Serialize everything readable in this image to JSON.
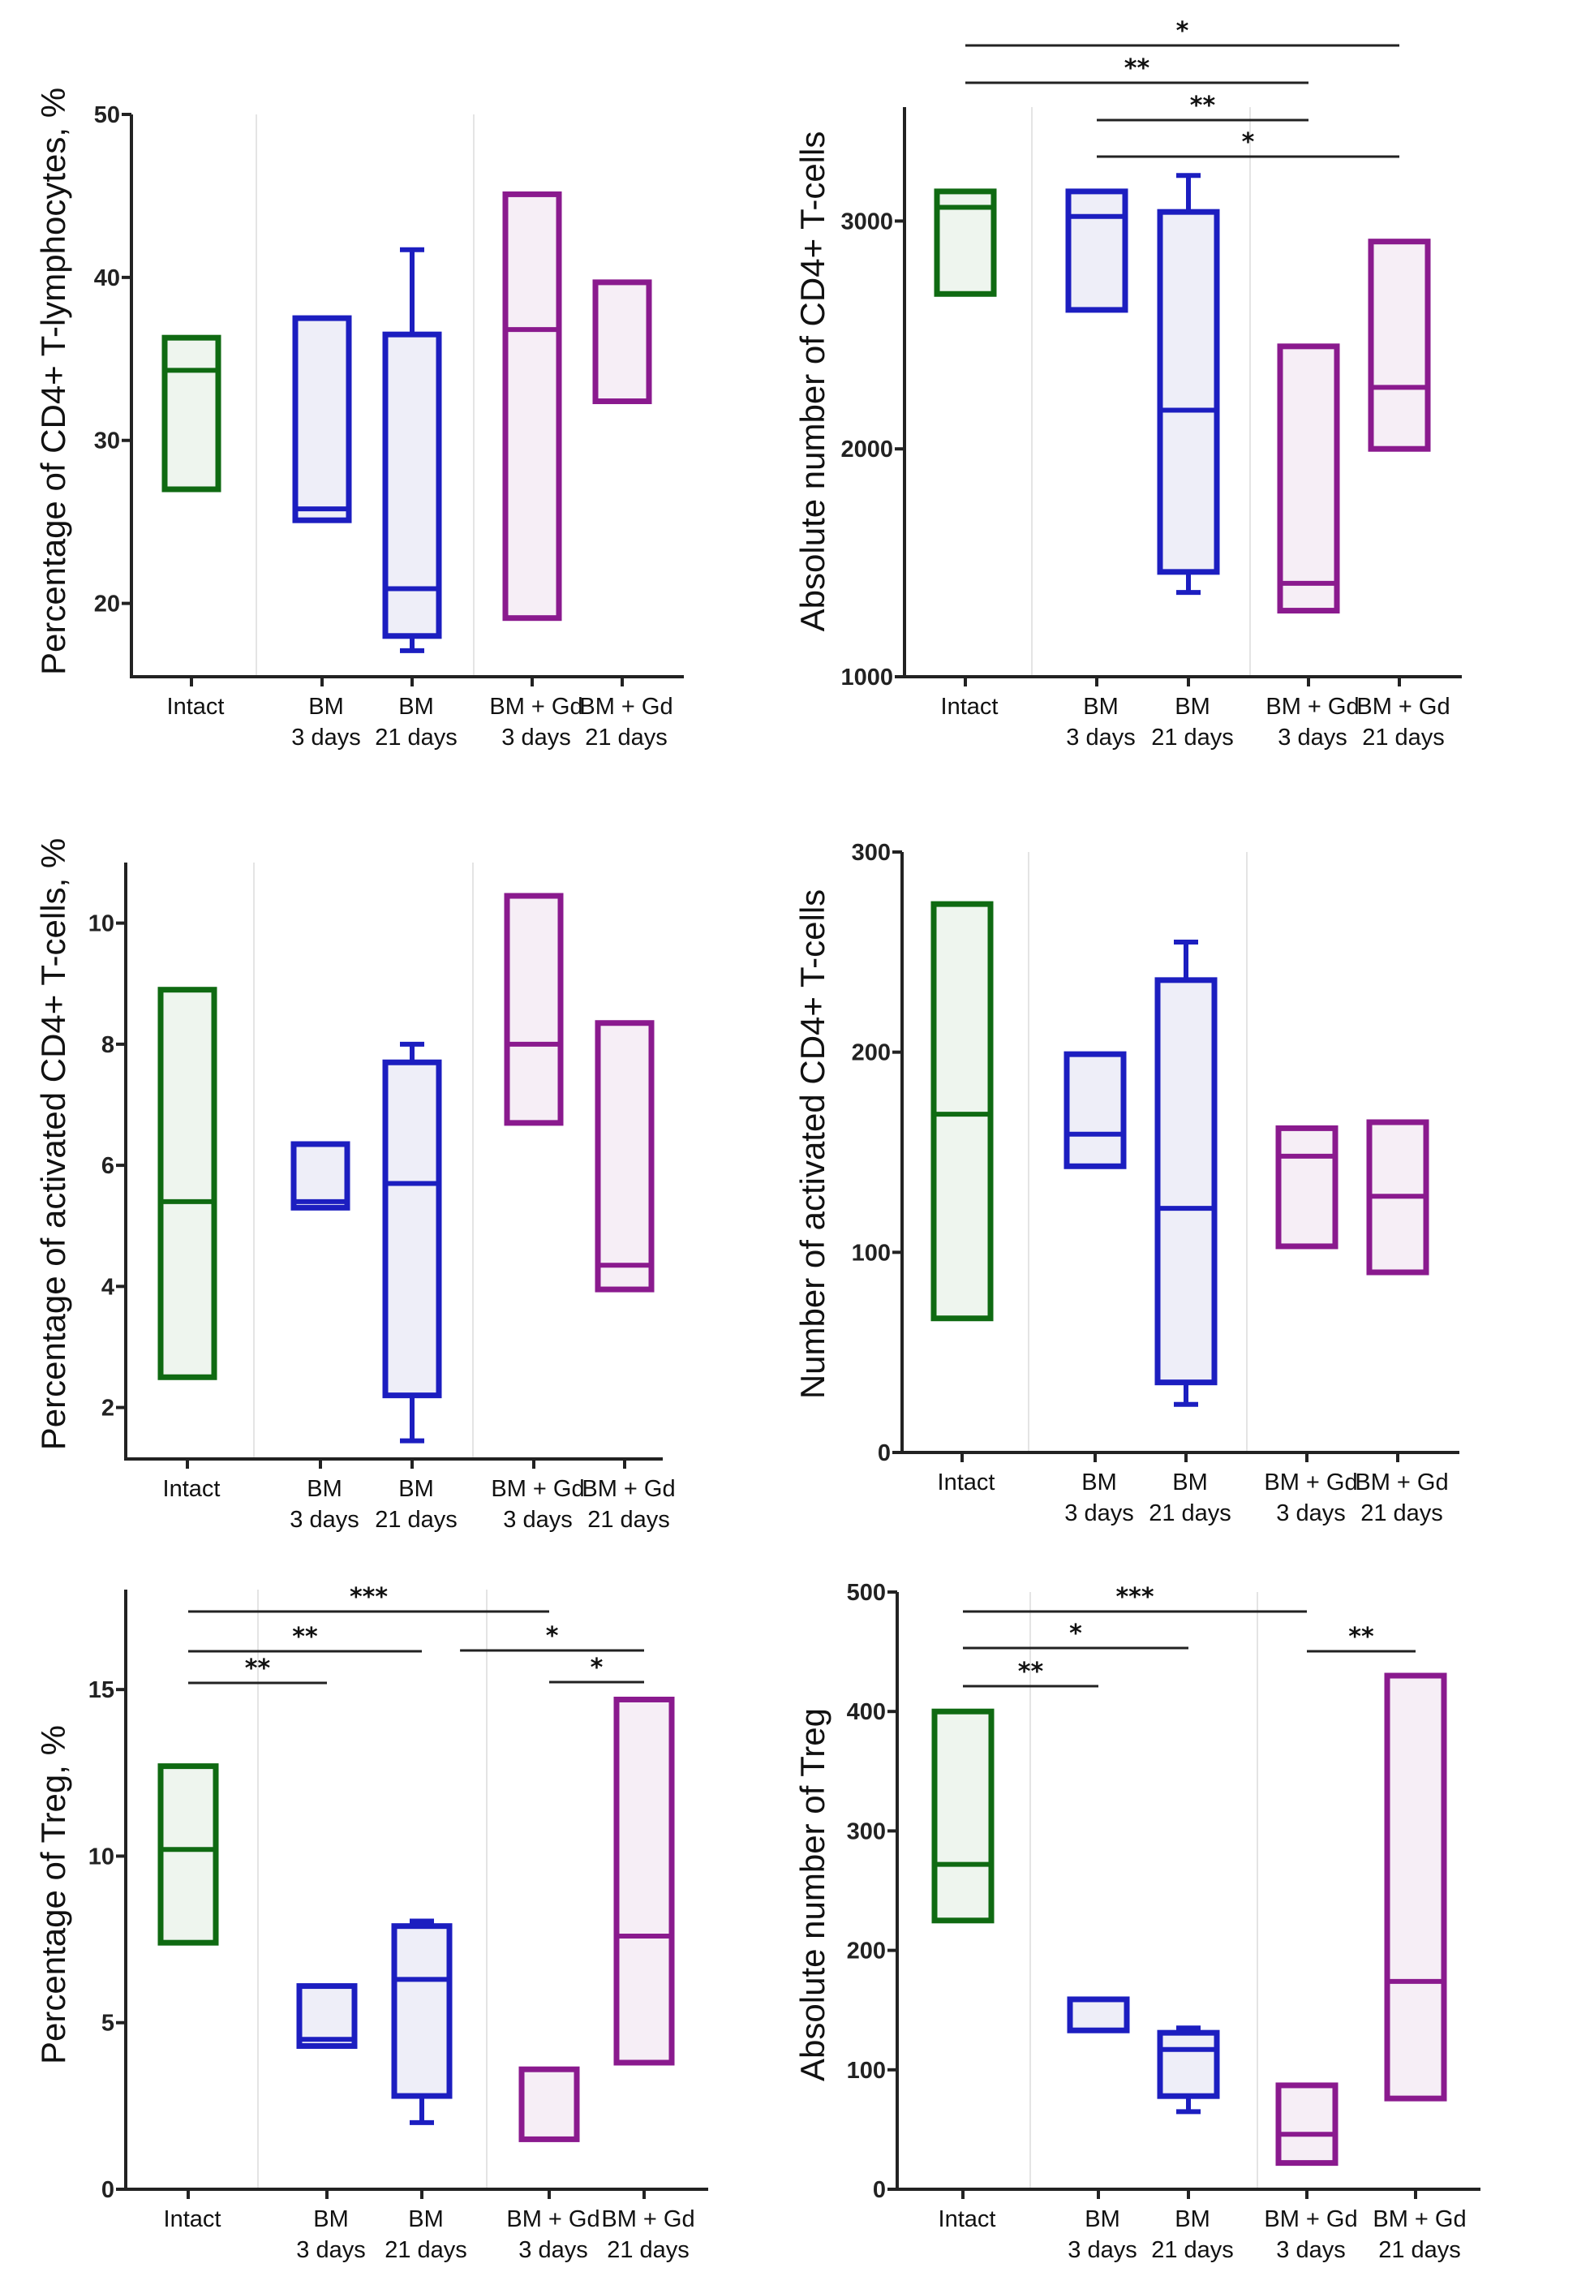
{
  "chart_data": [
    {
      "type": "box",
      "ylabel": "Percentage of CD4+ T-lymphocytes, %",
      "categories": [
        "Intact",
        "BM\n3 days",
        "BM\n21 days",
        "BM + Gd\n3 days",
        "BM + Gd\n21 days"
      ],
      "yticks": [
        20,
        30,
        40,
        50
      ],
      "ylim": [
        15.5,
        50
      ],
      "boxes": [
        {
          "q1": 27.0,
          "median": 34.3,
          "q3": 36.3,
          "min": null,
          "max": null
        },
        {
          "q1": 25.1,
          "median": 25.8,
          "q3": 37.5,
          "min": null,
          "max": null
        },
        {
          "q1": 18.0,
          "median": 20.9,
          "q3": 36.5,
          "min": 17.1,
          "max": 41.7
        },
        {
          "q1": 19.1,
          "median": 36.8,
          "q3": 45.1,
          "min": null,
          "max": null
        },
        {
          "q1": 32.4,
          "median": null,
          "q3": 39.7,
          "min": null,
          "max": null
        }
      ],
      "significance": []
    },
    {
      "type": "box",
      "ylabel": "Absolute number of CD4+ T-cells",
      "categories": [
        "Intact",
        "BM\n3 days",
        "BM\n21 days",
        "BM + Gd\n3 days",
        "BM + Gd\n21 days"
      ],
      "yticks": [
        1000,
        2000,
        3000
      ],
      "ylim": [
        1000,
        3500
      ],
      "boxes": [
        {
          "q1": 2680,
          "median": 3060,
          "q3": 3130,
          "min": null,
          "max": null
        },
        {
          "q1": 2610,
          "median": 3020,
          "q3": 3130,
          "min": null,
          "max": null
        },
        {
          "q1": 1460,
          "median": 2170,
          "q3": 3040,
          "min": 1370,
          "max": 3200
        },
        {
          "q1": 1290,
          "median": 1410,
          "q3": 2450,
          "min": null,
          "max": null
        },
        {
          "q1": 2000,
          "median": 2270,
          "q3": 2910,
          "min": null,
          "max": null
        }
      ],
      "significance": [
        {
          "from": 0,
          "to": 4,
          "label": "*"
        },
        {
          "from": 0,
          "to": 3,
          "label": "**"
        },
        {
          "from": 1,
          "to": 3,
          "label": "**"
        },
        {
          "from": 1,
          "to": 4,
          "label": "*"
        }
      ]
    },
    {
      "type": "box",
      "ylabel": "Percentage of activated CD4+ T-cells, %",
      "categories": [
        "Intact",
        "BM\n3 days",
        "BM\n21 days",
        "BM + Gd\n3 days",
        "BM + Gd\n21 days"
      ],
      "yticks": [
        2,
        4,
        6,
        8,
        10
      ],
      "ylim": [
        1.15,
        11
      ],
      "boxes": [
        {
          "q1": 2.5,
          "median": 5.4,
          "q3": 8.9,
          "min": null,
          "max": null
        },
        {
          "q1": 5.3,
          "median": 5.4,
          "q3": 6.35,
          "min": null,
          "max": null
        },
        {
          "q1": 2.2,
          "median": 5.7,
          "q3": 7.7,
          "min": 1.45,
          "max": 8.0
        },
        {
          "q1": 6.7,
          "median": 8.0,
          "q3": 10.45,
          "min": null,
          "max": null
        },
        {
          "q1": 3.95,
          "median": 4.35,
          "q3": 8.35,
          "min": null,
          "max": null
        }
      ],
      "significance": []
    },
    {
      "type": "box",
      "ylabel": "Number of activated CD4+ T-cells",
      "categories": [
        "Intact",
        "BM\n3 days",
        "BM\n21 days",
        "BM + Gd\n3 days",
        "BM + Gd\n21 days"
      ],
      "yticks": [
        0,
        100,
        200,
        300
      ],
      "ylim": [
        0,
        300
      ],
      "boxes": [
        {
          "q1": 67,
          "median": 169,
          "q3": 274,
          "min": null,
          "max": null
        },
        {
          "q1": 143,
          "median": 159,
          "q3": 199,
          "min": null,
          "max": null
        },
        {
          "q1": 35,
          "median": 122,
          "q3": 236,
          "min": 24,
          "max": 255
        },
        {
          "q1": 103,
          "median": 148,
          "q3": 162,
          "min": null,
          "max": null
        },
        {
          "q1": 90,
          "median": 128,
          "q3": 165,
          "min": null,
          "max": null
        }
      ],
      "significance": []
    },
    {
      "type": "box",
      "ylabel": "Percentage of Treg, %",
      "categories": [
        "Intact",
        "BM\n3 days",
        "BM\n21 days",
        "BM + Gd\n3 days",
        "BM + Gd\n21 days"
      ],
      "yticks": [
        0,
        5,
        10,
        15
      ],
      "ylim": [
        0,
        18
      ],
      "boxes": [
        {
          "q1": 7.4,
          "median": 10.2,
          "q3": 12.7,
          "min": null,
          "max": null
        },
        {
          "q1": 4.3,
          "median": 4.5,
          "q3": 6.1,
          "min": null,
          "max": null
        },
        {
          "q1": 2.8,
          "median": 6.3,
          "q3": 7.9,
          "min": 2.0,
          "max": 8.05
        },
        {
          "q1": 1.5,
          "median": null,
          "q3": 3.6,
          "min": null,
          "max": null
        },
        {
          "q1": 3.8,
          "median": 7.6,
          "q3": 14.7,
          "min": null,
          "max": null
        }
      ],
      "significance": [
        {
          "from": 0,
          "to": 3,
          "label": "***"
        },
        {
          "from": 0,
          "to": 2,
          "label": "**"
        },
        {
          "from": 2.3,
          "to": 4,
          "label": "*"
        },
        {
          "from": 0,
          "to": 1,
          "label": "**"
        },
        {
          "from": 3,
          "to": 4,
          "label": "*"
        }
      ]
    },
    {
      "type": "box",
      "ylabel": "Absolute number of Treg",
      "categories": [
        "Intact",
        "BM\n3 days",
        "BM\n21 days",
        "BM + Gd\n3 days",
        "BM + Gd\n21 days"
      ],
      "yticks": [
        0,
        100,
        200,
        300,
        400,
        500
      ],
      "ylim": [
        0,
        500
      ],
      "boxes": [
        {
          "q1": 225,
          "median": 272,
          "q3": 400,
          "min": null,
          "max": null
        },
        {
          "q1": 133,
          "median": null,
          "q3": 159,
          "min": null,
          "max": null
        },
        {
          "q1": 78,
          "median": 117,
          "q3": 131,
          "min": 65,
          "max": 135
        },
        {
          "q1": 22,
          "median": 46,
          "q3": 87,
          "min": null,
          "max": null
        },
        {
          "q1": 76,
          "median": 174,
          "q3": 430,
          "min": null,
          "max": null
        }
      ],
      "significance": [
        {
          "from": 0,
          "to": 3,
          "label": "***"
        },
        {
          "from": 0,
          "to": 2,
          "label": "*"
        },
        {
          "from": 0,
          "to": 1,
          "label": "**"
        },
        {
          "from": 3,
          "to": 4,
          "label": "**"
        }
      ]
    }
  ],
  "colors": {
    "Intact": "#0f6a12",
    "BM": "#1c1ec0",
    "BMGd": "#8a1a8e",
    "fill_green": "#eef5ee",
    "fill_blue": "#eeeef8",
    "fill_purple": "#f6eef6",
    "axis": "#222222",
    "separator": "#e4e4e4"
  }
}
